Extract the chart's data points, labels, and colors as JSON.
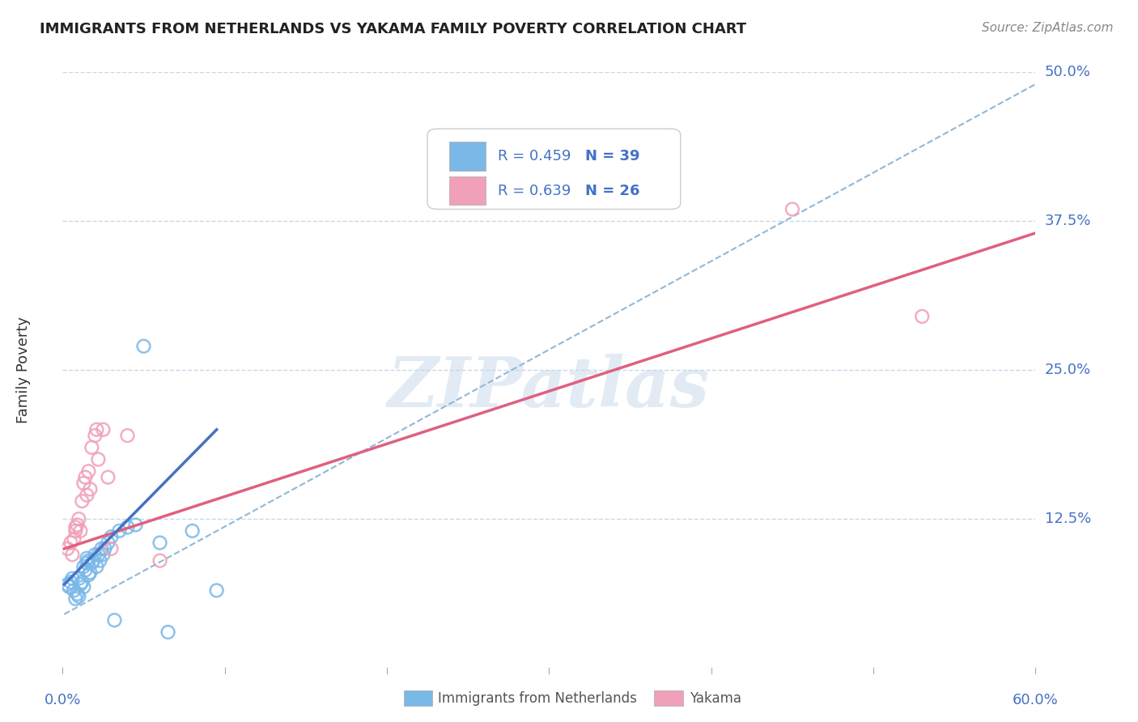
{
  "title": "IMMIGRANTS FROM NETHERLANDS VS YAKAMA FAMILY POVERTY CORRELATION CHART",
  "source_text": "Source: ZipAtlas.com",
  "ylabel": "Family Poverty",
  "xlim": [
    0.0,
    0.6
  ],
  "ylim": [
    0.0,
    0.5
  ],
  "ytick_labels": [
    "12.5%",
    "25.0%",
    "37.5%",
    "50.0%"
  ],
  "ytick_vals": [
    0.125,
    0.25,
    0.375,
    0.5
  ],
  "watermark": "ZIPatlas",
  "legend_r1": "R = 0.459",
  "legend_n1": "N = 39",
  "legend_r2": "R = 0.639",
  "legend_n2": "N = 26",
  "color_blue": "#7ab8e8",
  "color_pink": "#f0a0b8",
  "color_blue_text": "#4472c4",
  "color_line_blue": "#4472c4",
  "color_line_pink": "#e06080",
  "color_dashed": "#90b8d8",
  "background": "#ffffff",
  "grid_color": "#c8d8e8",
  "blue_scatter_x": [
    0.003,
    0.004,
    0.005,
    0.006,
    0.007,
    0.008,
    0.009,
    0.01,
    0.01,
    0.011,
    0.012,
    0.013,
    0.013,
    0.014,
    0.015,
    0.015,
    0.016,
    0.016,
    0.017,
    0.018,
    0.019,
    0.02,
    0.021,
    0.022,
    0.023,
    0.024,
    0.025,
    0.026,
    0.028,
    0.03,
    0.032,
    0.035,
    0.04,
    0.045,
    0.05,
    0.06,
    0.065,
    0.08,
    0.095
  ],
  "blue_scatter_y": [
    0.07,
    0.068,
    0.072,
    0.075,
    0.065,
    0.058,
    0.062,
    0.06,
    0.075,
    0.07,
    0.072,
    0.068,
    0.085,
    0.082,
    0.088,
    0.092,
    0.078,
    0.09,
    0.08,
    0.088,
    0.09,
    0.095,
    0.085,
    0.095,
    0.09,
    0.1,
    0.095,
    0.1,
    0.105,
    0.11,
    0.04,
    0.115,
    0.118,
    0.12,
    0.27,
    0.105,
    0.03,
    0.115,
    0.065
  ],
  "pink_scatter_x": [
    0.003,
    0.005,
    0.006,
    0.007,
    0.008,
    0.008,
    0.009,
    0.01,
    0.011,
    0.012,
    0.013,
    0.014,
    0.015,
    0.016,
    0.017,
    0.018,
    0.02,
    0.021,
    0.022,
    0.025,
    0.028,
    0.03,
    0.04,
    0.06,
    0.45,
    0.53
  ],
  "pink_scatter_y": [
    0.1,
    0.105,
    0.095,
    0.108,
    0.118,
    0.115,
    0.12,
    0.125,
    0.115,
    0.14,
    0.155,
    0.16,
    0.145,
    0.165,
    0.15,
    0.185,
    0.195,
    0.2,
    0.175,
    0.2,
    0.16,
    0.1,
    0.195,
    0.09,
    0.385,
    0.295
  ],
  "blue_line_x": [
    0.001,
    0.095
  ],
  "blue_line_y": [
    0.07,
    0.2
  ],
  "pink_line_x": [
    0.001,
    0.6
  ],
  "pink_line_y": [
    0.1,
    0.365
  ],
  "dashed_line_x": [
    0.001,
    0.6
  ],
  "dashed_line_y": [
    0.045,
    0.49
  ]
}
